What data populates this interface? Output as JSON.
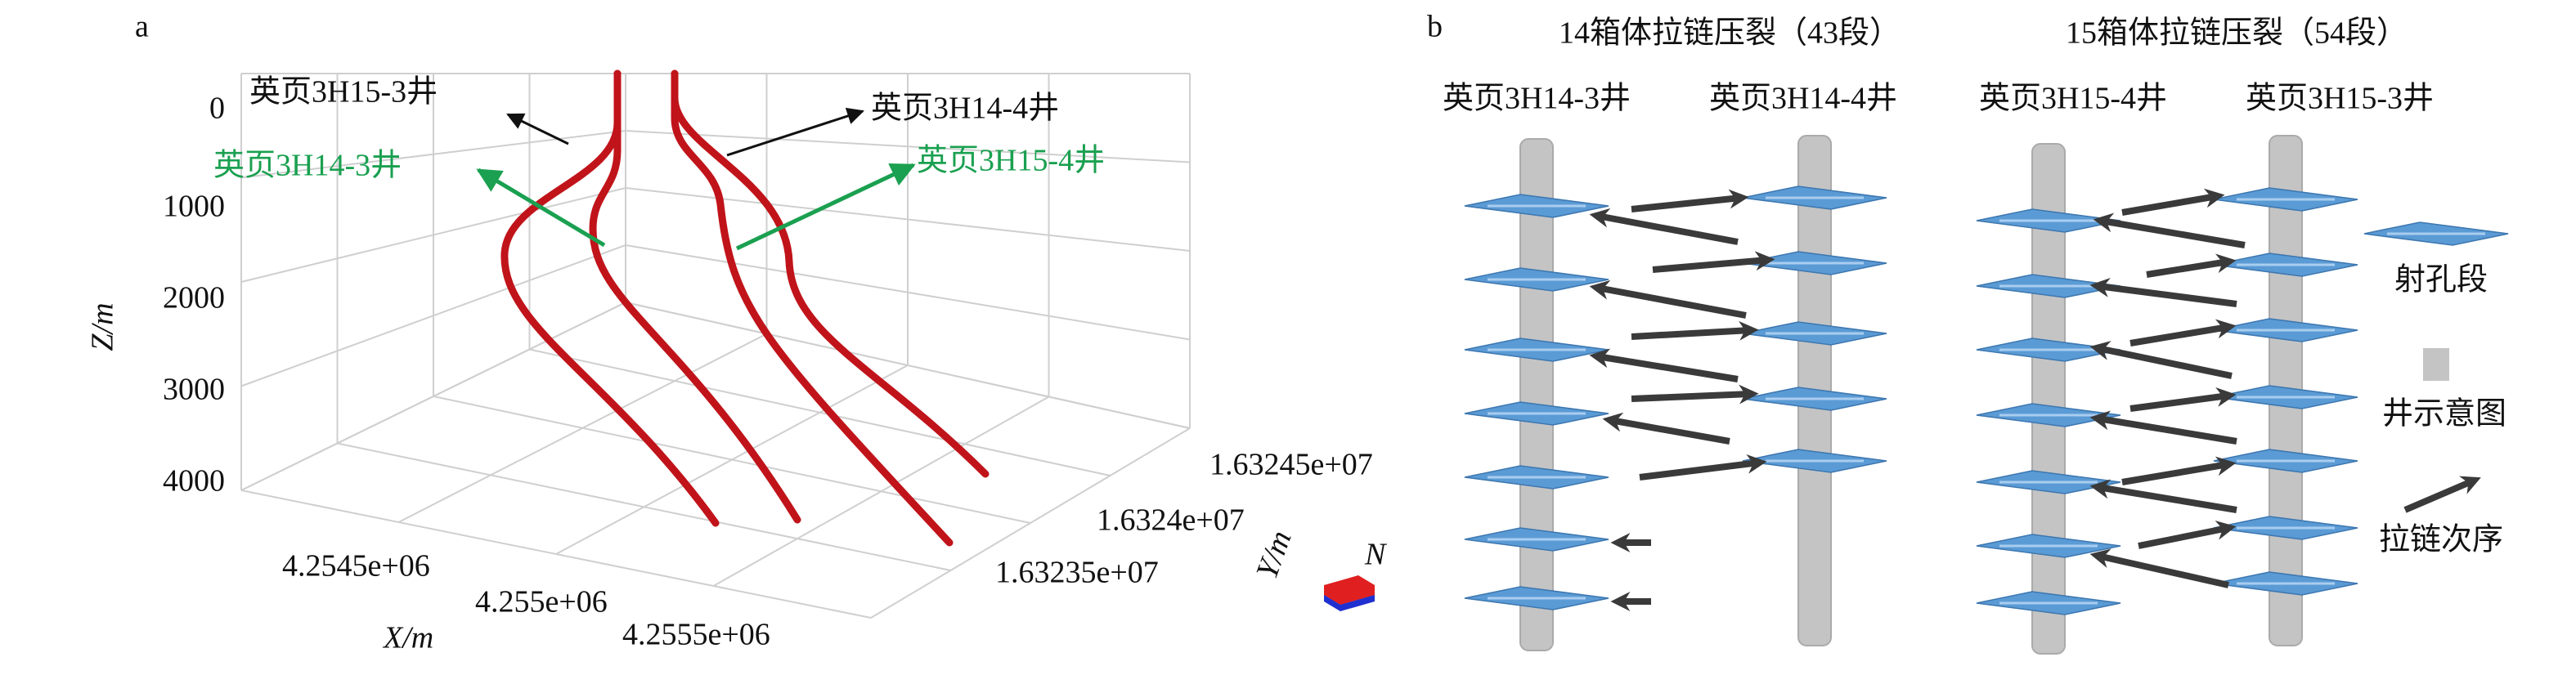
{
  "panel_a": {
    "label": "a",
    "wells": [
      {
        "label": "英页3H15-3井"
      },
      {
        "label": "英页3H14-3井"
      },
      {
        "label": "英页3H14-4井"
      },
      {
        "label": "英页3H15-4井"
      }
    ],
    "z_axis": {
      "label": "Z/m",
      "ticks": [
        "0",
        "1000",
        "2000",
        "3000",
        "4000"
      ]
    },
    "x_axis": {
      "label": "X/m",
      "ticks": [
        "4.2545e+06",
        "4.255e+06",
        "4.2555e+06"
      ]
    },
    "y_axis": {
      "label": "Y/m",
      "ticks": [
        "1.63235e+07",
        "1.6324e+07",
        "1.63245e+07"
      ]
    },
    "north": "N"
  },
  "panel_b": {
    "label": "b",
    "groups": [
      {
        "title": "14箱体拉链压裂（43段）",
        "wells": [
          "英页3H14-3井",
          "英页3H14-4井"
        ]
      },
      {
        "title": "15箱体拉链压裂（54段）",
        "wells": [
          "英页3H15-4井",
          "英页3H15-3井"
        ]
      }
    ],
    "legend": [
      "射孔段",
      "井示意图",
      "拉链次序"
    ]
  }
}
